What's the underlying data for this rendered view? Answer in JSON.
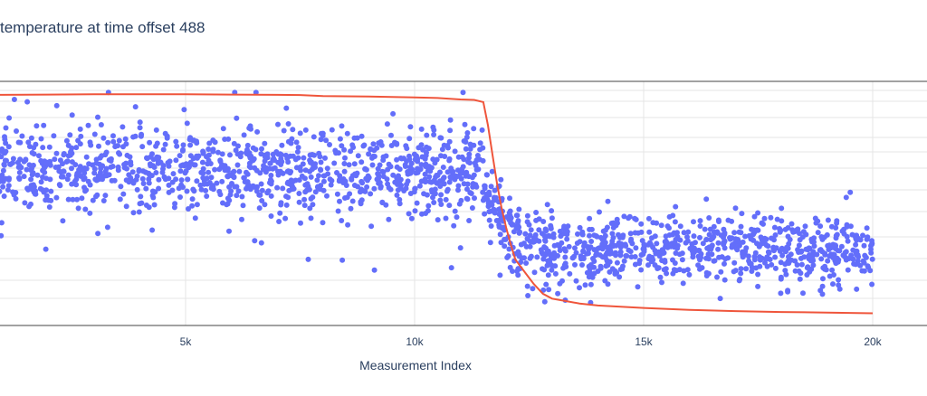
{
  "chart_data": {
    "type": "scatter",
    "title": "temperature at time offset 488",
    "xlabel": "Measurement Index",
    "ylabel": "",
    "x_ticks": [
      5000,
      10000,
      15000,
      20000
    ],
    "x_tick_labels": [
      "5k",
      "10k",
      "15k",
      "20k"
    ],
    "xlim": [
      -100,
      21200
    ],
    "ylim": [
      0.0,
      1.0
    ],
    "grid": true,
    "series": [
      {
        "mode": "markers",
        "color": "#636efa",
        "segments": [
          {
            "x_range": [
              0,
              11500
            ],
            "center": 0.635,
            "spread": 0.085,
            "outlier_spread": 0.21,
            "count": 1150
          },
          {
            "x_range": [
              11500,
              12300
            ],
            "center_from": 0.58,
            "center_to": 0.31,
            "spread": 0.07,
            "outlier_spread": 0.14,
            "count": 100
          },
          {
            "x_range": [
              12300,
              20000
            ],
            "center": 0.31,
            "spread": 0.065,
            "outlier_spread": 0.13,
            "count": 770
          }
        ]
      },
      {
        "mode": "lines",
        "color": "#ef553b",
        "x": [
          0,
          1000,
          2000,
          3000,
          4000,
          5000,
          6000,
          7000,
          7500,
          8000,
          9000,
          10000,
          10500,
          11000,
          11300,
          11500,
          11600,
          11700,
          11800,
          11900,
          12000,
          12100,
          12200,
          12400,
          12600,
          12800,
          13000,
          13300,
          13600,
          14000,
          15000,
          16000,
          17000,
          18000,
          19000,
          20000
        ],
        "y": [
          0.943,
          0.945,
          0.946,
          0.947,
          0.947,
          0.947,
          0.946,
          0.945,
          0.944,
          0.94,
          0.938,
          0.934,
          0.932,
          0.926,
          0.924,
          0.915,
          0.82,
          0.7,
          0.58,
          0.48,
          0.4,
          0.33,
          0.27,
          0.22,
          0.17,
          0.13,
          0.11,
          0.1,
          0.09,
          0.082,
          0.072,
          0.064,
          0.059,
          0.055,
          0.053,
          0.05
        ]
      }
    ]
  }
}
